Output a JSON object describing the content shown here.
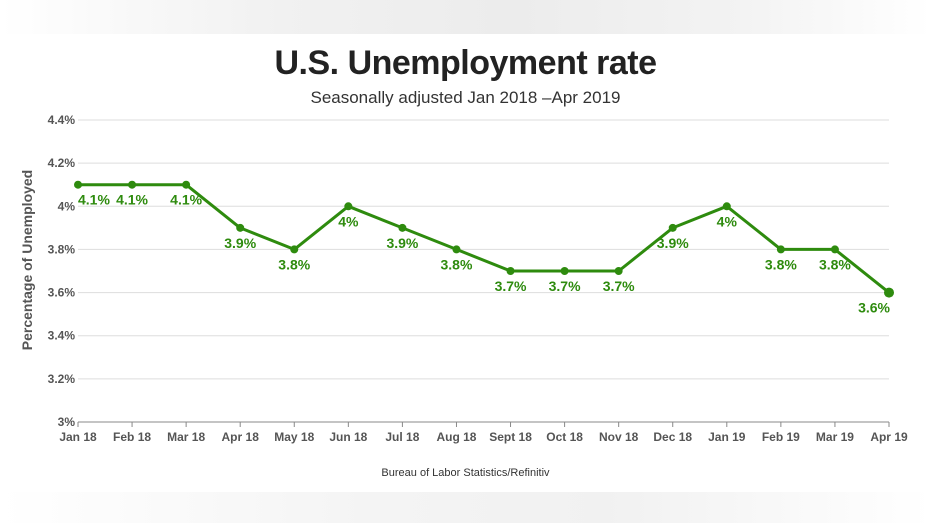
{
  "header": {
    "title": "U.S. Unemployment rate",
    "subtitle": "Seasonally adjusted Jan 2018 –Apr 2019"
  },
  "footer": {
    "source": "Bureau of Labor Statistics/Refinitiv"
  },
  "colors": {
    "line": "#2e8b0e",
    "grid": "#dddddd",
    "axis": "#888888",
    "text": "#555555"
  },
  "chart_data": {
    "type": "line",
    "title": "U.S. Unemployment rate",
    "subtitle": "Seasonally adjusted Jan 2018 –Apr 2019",
    "xlabel": "",
    "ylabel": "Percentage of Unemployed",
    "ylim": [
      3.0,
      4.4
    ],
    "yticks": [
      3.0,
      3.2,
      3.4,
      3.6,
      3.8,
      4.0,
      4.2,
      4.4
    ],
    "ytick_labels": [
      "3%",
      "3.2%",
      "3.4%",
      "3.6%",
      "3.8%",
      "4%",
      "4.2%",
      "4.4%"
    ],
    "grid": "horizontal",
    "categories": [
      "Jan 18",
      "Feb 18",
      "Mar 18",
      "Apr 18",
      "May 18",
      "Jun 18",
      "Jul 18",
      "Aug 18",
      "Sept 18",
      "Oct 18",
      "Nov 18",
      "Dec 18",
      "Jan 19",
      "Feb 19",
      "Mar 19",
      "Apr 19"
    ],
    "values": [
      4.1,
      4.1,
      4.1,
      3.9,
      3.8,
      4.0,
      3.9,
      3.8,
      3.7,
      3.7,
      3.7,
      3.9,
      4.0,
      3.8,
      3.8,
      3.6
    ],
    "data_labels": [
      "4.1%",
      "4.1%",
      "4.1%",
      "3.9%",
      "3.8%",
      "4%",
      "3.9%",
      "3.8%",
      "3.7%",
      "3.7%",
      "3.7%",
      "3.9%",
      "4%",
      "3.8%",
      "3.8%",
      "3.6%"
    ]
  }
}
